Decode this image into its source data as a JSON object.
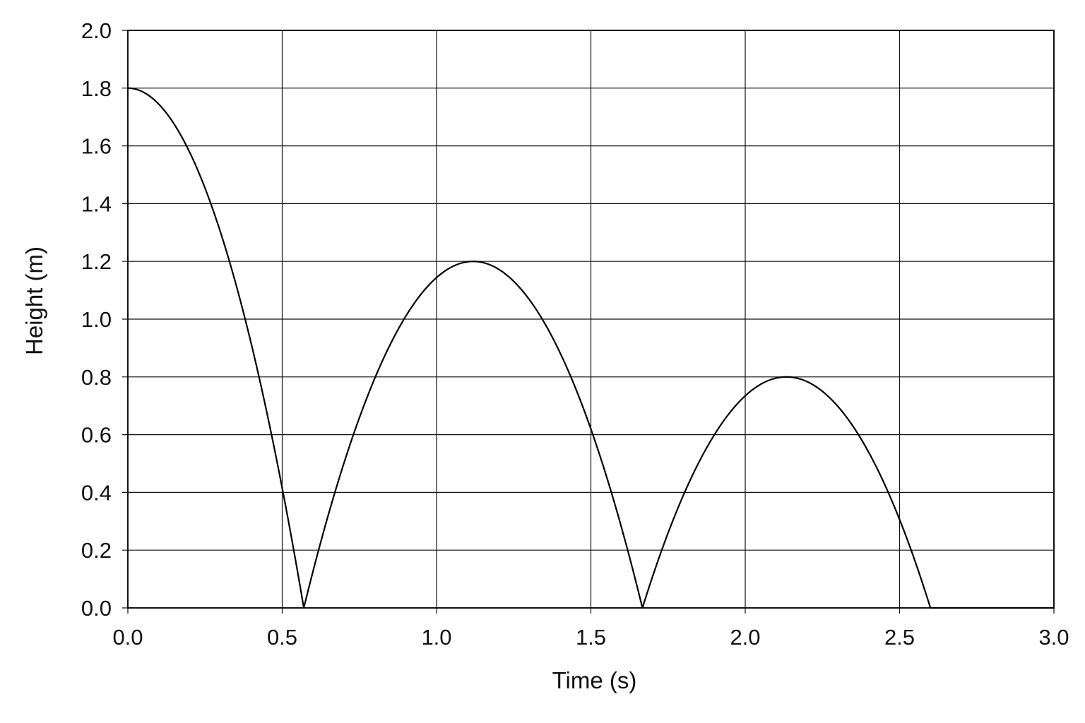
{
  "chart_data": {
    "type": "line",
    "title": "",
    "xlabel": "Time (s)",
    "ylabel": "Height (m)",
    "xlim": [
      0.0,
      3.0
    ],
    "ylim": [
      0.0,
      2.0
    ],
    "x_ticks": [
      "0.0",
      "0.5",
      "1.0",
      "1.5",
      "2.0",
      "2.5",
      "3.0"
    ],
    "y_ticks": [
      "0.0",
      "0.2",
      "0.4",
      "0.6",
      "0.8",
      "1.0",
      "1.2",
      "1.4",
      "1.6",
      "1.8",
      "2.0"
    ],
    "grid": true,
    "legend": "none",
    "line_color": "#000000",
    "series": [
      {
        "values_description_free": true,
        "x": [
          0.0,
          0.05,
          0.1,
          0.15,
          0.2,
          0.25,
          0.3,
          0.35,
          0.4,
          0.45,
          0.5,
          0.55,
          0.57,
          0.6,
          0.65,
          0.7,
          0.75,
          0.8,
          0.85,
          0.9,
          0.95,
          1.0,
          1.05,
          1.1,
          1.15,
          1.2,
          1.25,
          1.3,
          1.35,
          1.4,
          1.45,
          1.5,
          1.55,
          1.6,
          1.667,
          1.7,
          1.75,
          1.8,
          1.85,
          1.9,
          1.95,
          2.0,
          2.05,
          2.1,
          2.13,
          2.15,
          2.2,
          2.25,
          2.3,
          2.35,
          2.4,
          2.45,
          2.5,
          2.55,
          2.6,
          2.7,
          2.8,
          2.9,
          3.0
        ],
        "y": [
          1.8,
          1.79,
          1.75,
          1.69,
          1.6,
          1.49,
          1.36,
          1.2,
          1.02,
          0.82,
          0.6,
          0.35,
          0.0,
          0.2,
          0.44,
          0.64,
          0.81,
          0.95,
          1.06,
          1.14,
          1.19,
          1.2,
          1.19,
          1.2,
          1.19,
          1.16,
          1.1,
          1.01,
          0.91,
          0.78,
          0.62,
          0.6,
          0.37,
          0.2,
          0.0,
          0.16,
          0.35,
          0.51,
          0.63,
          0.72,
          0.77,
          0.79,
          0.8,
          0.8,
          0.8,
          0.8,
          0.78,
          0.74,
          0.68,
          0.6,
          0.5,
          0.38,
          0.31,
          0.17,
          0.0,
          0.0,
          0.0,
          0.0,
          0.0
        ]
      }
    ]
  }
}
